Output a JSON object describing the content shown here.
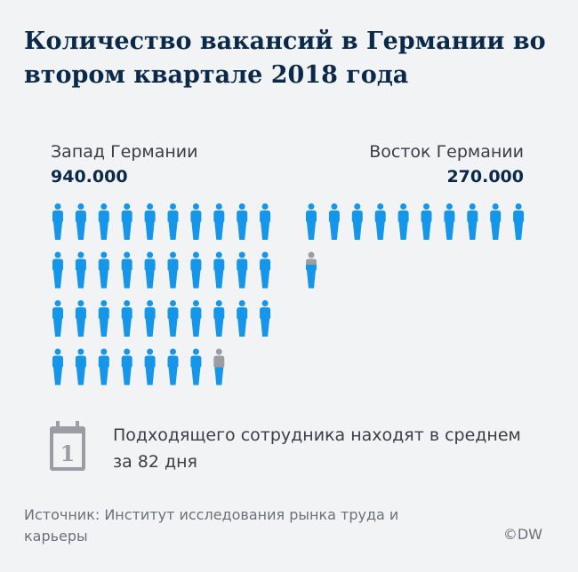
{
  "title": "Количество вакансий в Германии во втором квартале 2018 года",
  "chart_data": {
    "type": "pictogram",
    "unit_per_icon": 25000,
    "series": [
      {
        "name": "Запад Германии",
        "label": "940.000",
        "value": 940000
      },
      {
        "name": "Восток Германии",
        "label": "270.000",
        "value": 270000
      }
    ],
    "colors": {
      "filled": "#1596e8",
      "empty": "#9a9ea3"
    }
  },
  "fact": {
    "icon": "calendar-icon",
    "icon_text": "1",
    "text": "Подходящего сотрудника находят в среднем за 82 дня"
  },
  "source": "Источник: Институт исследования рынка труда и карьеры",
  "copyright": "©DW"
}
